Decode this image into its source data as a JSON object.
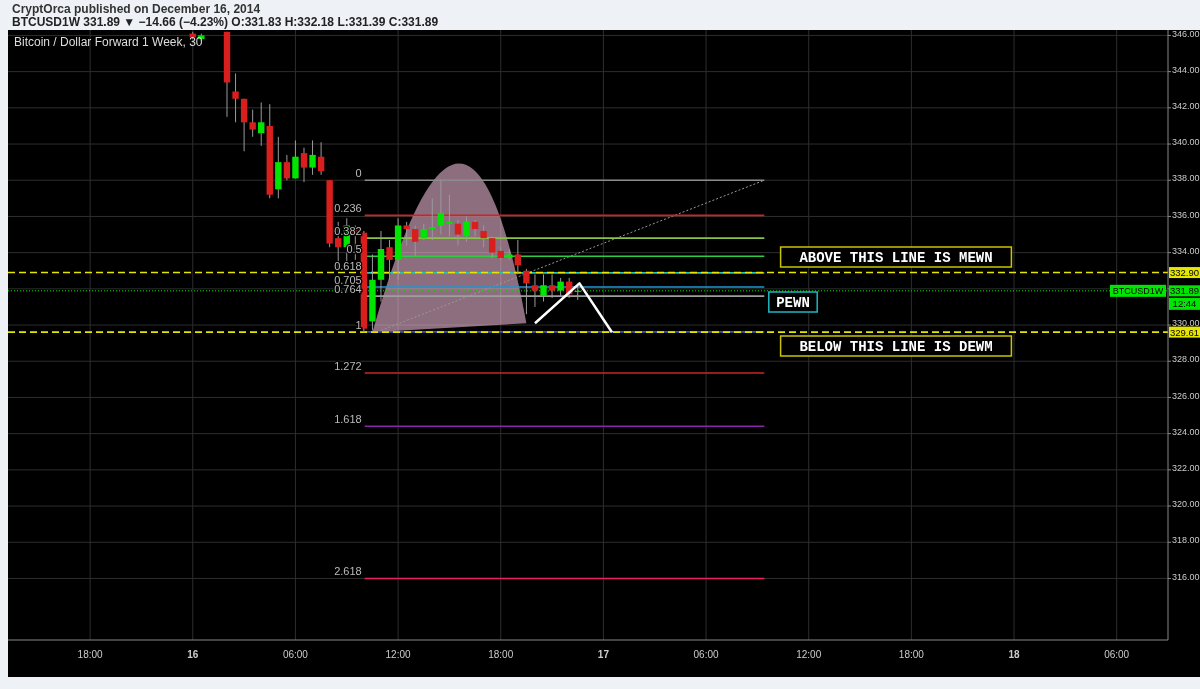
{
  "chart_data": {
    "type": "candlestick",
    "title": "Bitcoin / Dollar Forward 1 Week, 30",
    "subtitle": "BTCUSD1W 331.89 ▼ −14.66 (−4.23%) O:331.83 H:332.18 L:331.39 C:331.89",
    "annotations": [
      "CryptOrca published on December 16, 2014",
      "ABOVE THIS LINE IS MEWN",
      "PEWN",
      "BELOW THIS LINE IS DEWM",
      {
        "text": "BTCUSD1W",
        "y": 331.89
      },
      "12:44",
      "0",
      "0.236",
      "0.382",
      "0.5",
      "0.618",
      "0.705",
      "0.764",
      "1",
      "1.272",
      "1.618",
      "2.618"
    ],
    "x": [
      "2014-12-16T00:00",
      "2014-12-16T00:30",
      "2014-12-16T02:00",
      "2014-12-16T02:30",
      "2014-12-16T03:00",
      "2014-12-16T03:30",
      "2014-12-16T04:00",
      "2014-12-16T04:30",
      "2014-12-16T05:00",
      "2014-12-16T05:30",
      "2014-12-16T06:00",
      "2014-12-16T06:30",
      "2014-12-16T07:00",
      "2014-12-16T07:30",
      "2014-12-16T08:00",
      "2014-12-16T08:30",
      "2014-12-16T09:00",
      "2014-12-16T09:30",
      "2014-12-16T10:00",
      "2014-12-16T10:30",
      "2014-12-16T11:00",
      "2014-12-16T11:30",
      "2014-12-16T12:00",
      "2014-12-16T12:30",
      "2014-12-16T13:00",
      "2014-12-16T13:30",
      "2014-12-16T14:00",
      "2014-12-16T14:30",
      "2014-12-16T15:00",
      "2014-12-16T15:30",
      "2014-12-16T16:00",
      "2014-12-16T16:30",
      "2014-12-16T17:00",
      "2014-12-16T17:30",
      "2014-12-16T18:00",
      "2014-12-16T18:30",
      "2014-12-16T19:00",
      "2014-12-16T19:30",
      "2014-12-16T20:00",
      "2014-12-16T20:30",
      "2014-12-16T21:00",
      "2014-12-16T21:30",
      "2014-12-16T22:00",
      "2014-12-16T22:30"
    ],
    "ohlc": [
      [
        346.1,
        346.2,
        345.8,
        345.9
      ],
      [
        345.8,
        346.1,
        345.7,
        346.0
      ],
      [
        346.2,
        346.2,
        341.5,
        343.4
      ],
      [
        342.9,
        343.9,
        341.2,
        342.5
      ],
      [
        342.5,
        342.5,
        339.6,
        341.2
      ],
      [
        341.2,
        341.9,
        340.4,
        340.8
      ],
      [
        340.6,
        342.3,
        339.9,
        341.2
      ],
      [
        341.0,
        342.2,
        337.0,
        337.2
      ],
      [
        337.5,
        340.4,
        337.0,
        339.0
      ],
      [
        339.0,
        339.4,
        338.0,
        338.1
      ],
      [
        338.1,
        340.2,
        338.1,
        339.3
      ],
      [
        339.5,
        339.8,
        337.9,
        338.7
      ],
      [
        338.7,
        340.2,
        338.3,
        339.4
      ],
      [
        339.3,
        340.1,
        338.3,
        338.5
      ],
      [
        338.0,
        338.0,
        334.3,
        334.5
      ],
      [
        334.8,
        335.7,
        333.1,
        334.3
      ],
      [
        334.3,
        335.9,
        333.4,
        335.5
      ],
      [
        335.4,
        335.5,
        333.6,
        335.1
      ],
      [
        335.1,
        335.2,
        329.6,
        329.8
      ],
      [
        330.2,
        333.9,
        329.7,
        332.5
      ],
      [
        332.5,
        335.2,
        331.3,
        334.2
      ],
      [
        334.3,
        334.7,
        332.5,
        333.6
      ],
      [
        333.6,
        335.9,
        332.5,
        335.5
      ],
      [
        335.5,
        335.7,
        334.4,
        335.3
      ],
      [
        335.3,
        335.5,
        333.8,
        334.6
      ],
      [
        334.8,
        335.6,
        334.7,
        335.3
      ],
      [
        335.3,
        337.0,
        334.7,
        335.4
      ],
      [
        335.5,
        338.0,
        335.0,
        336.2
      ],
      [
        335.6,
        337.2,
        334.9,
        335.7
      ],
      [
        335.6,
        335.8,
        334.4,
        335.0
      ],
      [
        334.9,
        336.0,
        334.6,
        335.7
      ],
      [
        335.7,
        335.8,
        334.9,
        335.3
      ],
      [
        335.2,
        335.5,
        334.3,
        334.8
      ],
      [
        334.8,
        334.9,
        333.7,
        334.0
      ],
      [
        334.1,
        334.3,
        333.6,
        333.7
      ],
      [
        333.7,
        334.2,
        333.6,
        333.9
      ],
      [
        333.9,
        334.7,
        332.8,
        333.3
      ],
      [
        333.0,
        333.1,
        330.6,
        332.3
      ],
      [
        332.2,
        332.8,
        331.0,
        331.9
      ],
      [
        331.6,
        332.8,
        331.3,
        332.2
      ],
      [
        332.2,
        332.8,
        331.5,
        331.9
      ],
      [
        331.9,
        332.6,
        331.6,
        332.4
      ],
      [
        332.4,
        332.6,
        331.5,
        331.7
      ],
      [
        331.83,
        332.18,
        331.39,
        331.89
      ]
    ],
    "colors": [
      "#d91e1e",
      "#00e600",
      "#d91e1e",
      "#d91e1e",
      "#d91e1e",
      "#d91e1e",
      "#00e600",
      "#d91e1e",
      "#00e600",
      "#d91e1e",
      "#00e600",
      "#d91e1e",
      "#00e600",
      "#d91e1e",
      "#d91e1e",
      "#d91e1e",
      "#00e600",
      "#d91e1e",
      "#d91e1e",
      "#00e600",
      "#00e600",
      "#d91e1e",
      "#00e600",
      "#d91e1e",
      "#d91e1e",
      "#00e600",
      "#00e600",
      "#00e600",
      "#00e600",
      "#d91e1e",
      "#00e600",
      "#d91e1e",
      "#d91e1e",
      "#d91e1e",
      "#d91e1e",
      "#00e600",
      "#d91e1e",
      "#d91e1e",
      "#d91e1e",
      "#00e600",
      "#d91e1e",
      "#00e600",
      "#d91e1e",
      "#00e600"
    ],
    "xlim": [
      "2014-12-15T13:12",
      "2014-12-18T09:00"
    ],
    "xticks": [
      {
        "value": "2014-12-15T18:00",
        "label": "18:00"
      },
      {
        "value": "2014-12-16T00:00",
        "label": "16"
      },
      {
        "value": "2014-12-16T06:00",
        "label": "06:00"
      },
      {
        "value": "2014-12-16T12:00",
        "label": "12:00"
      },
      {
        "value": "2014-12-16T18:00",
        "label": "18:00"
      },
      {
        "value": "2014-12-17T00:00",
        "label": "17"
      },
      {
        "value": "2014-12-17T06:00",
        "label": "06:00"
      },
      {
        "value": "2014-12-17T12:00",
        "label": "12:00"
      },
      {
        "value": "2014-12-17T18:00",
        "label": "18:00"
      },
      {
        "value": "2014-12-18T00:00",
        "label": "18"
      },
      {
        "value": "2014-12-18T06:00",
        "label": "06:00"
      }
    ],
    "ylim": [
      312.6,
      346.3
    ],
    "yticks": [
      {
        "value": 316,
        "label": "316.00"
      },
      {
        "value": 318,
        "label": "318.00"
      },
      {
        "value": 320,
        "label": "320.00"
      },
      {
        "value": 322,
        "label": "322.00"
      },
      {
        "value": 324,
        "label": "324.00"
      },
      {
        "value": 326,
        "label": "326.00"
      },
      {
        "value": 328,
        "label": "328.00"
      },
      {
        "value": 330,
        "label": "330.00"
      },
      {
        "value": 332,
        "label": null
      },
      {
        "value": 334,
        "label": "334.00"
      },
      {
        "value": 336,
        "label": "336.00"
      },
      {
        "value": 338,
        "label": "338.00"
      },
      {
        "value": 340,
        "label": "340.00"
      },
      {
        "value": 342,
        "label": "342.00"
      },
      {
        "value": 344,
        "label": "344.00"
      },
      {
        "value": 346,
        "label": "346.00"
      }
    ],
    "grid": true,
    "ref_lines": [
      {
        "axis": "y",
        "value": 338.0,
        "color": "#8c8c8c",
        "line_style": "solid"
      },
      {
        "axis": "y",
        "value": 336.06,
        "color": "#c62828",
        "line_style": "solid"
      },
      {
        "axis": "y",
        "value": 334.8,
        "color": "#8bc34a",
        "line_style": "solid"
      },
      {
        "axis": "y",
        "value": 333.8,
        "color": "#2ecc40",
        "line_style": "solid"
      },
      {
        "axis": "y",
        "value": 332.88,
        "color": "#26c6aa",
        "line_style": "solid"
      },
      {
        "axis": "y",
        "value": 332.1,
        "color": "#2196d3",
        "line_style": "solid"
      },
      {
        "axis": "y",
        "value": 331.6,
        "color": "#9e9e9e",
        "line_style": "solid"
      },
      {
        "axis": "y",
        "value": 329.62,
        "color": "#3f51b5",
        "line_style": "solid"
      },
      {
        "axis": "y",
        "value": 327.35,
        "color": "#c62828",
        "line_style": "solid"
      },
      {
        "axis": "y",
        "value": 324.41,
        "color": "#8e24aa",
        "line_style": "solid"
      },
      {
        "axis": "y",
        "value": 316.0,
        "color": "#e91e63",
        "line_style": "solid"
      },
      {
        "axis": "y",
        "value": 332.9,
        "label": "332.90",
        "color": "#e6e600",
        "line_style": "dashed"
      },
      {
        "axis": "y",
        "value": 329.61,
        "label": "329.61",
        "color": "#e6e600",
        "line_style": "dashed"
      },
      {
        "axis": "y",
        "value": 331.89,
        "label": "331.89",
        "color": "#00e600",
        "line_style": "dotted"
      }
    ]
  }
}
